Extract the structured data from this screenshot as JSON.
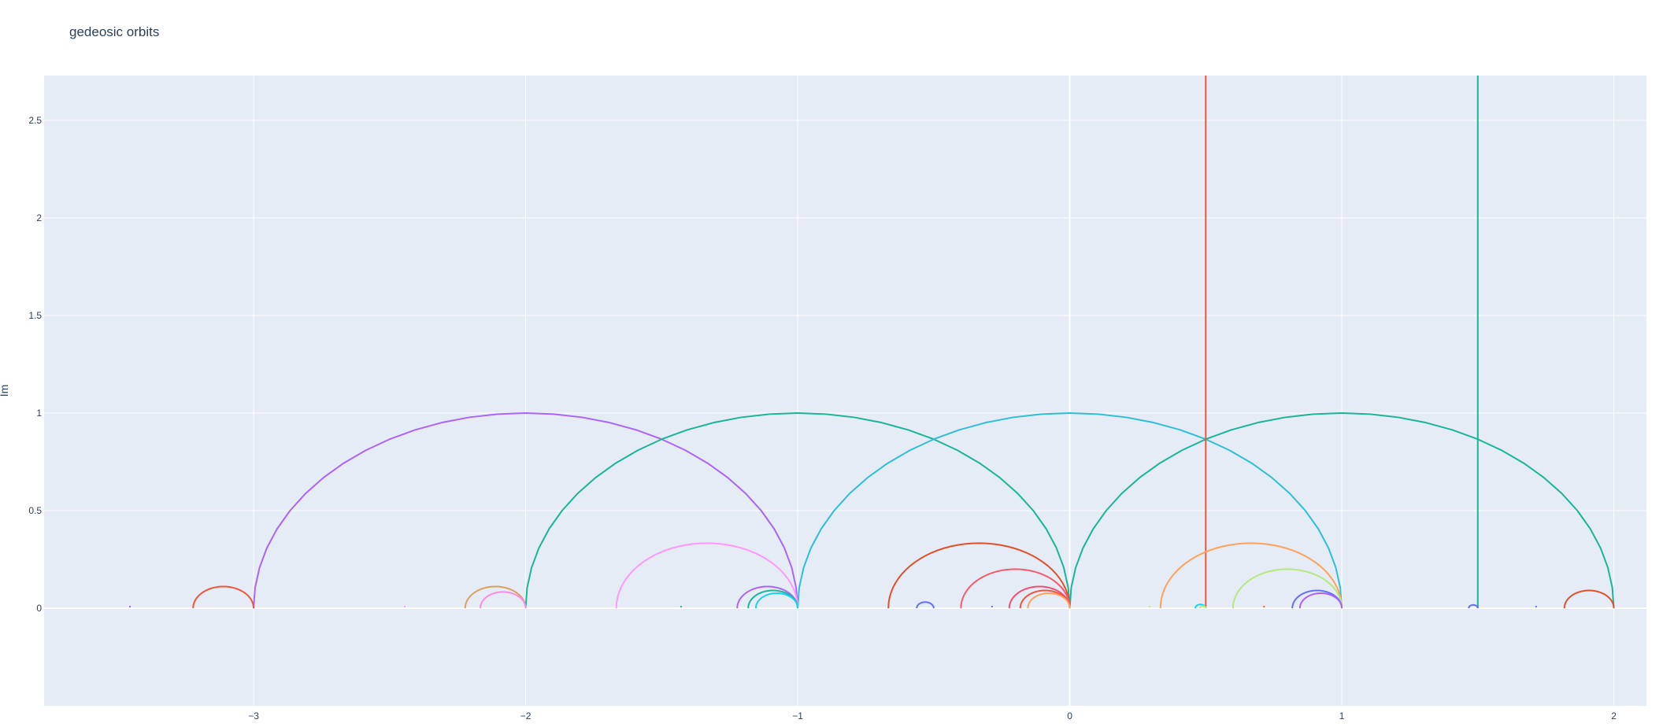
{
  "chart_data": {
    "type": "line",
    "title": "gedeosic orbits",
    "xlabel": "",
    "ylabel": "Im",
    "xlim": [
      -3.77,
      2.12
    ],
    "ylim": [
      -0.5,
      2.73
    ],
    "grid": true,
    "legend": "none",
    "background_color": "#e5ecf6",
    "x_ticks": [
      -3,
      -2,
      -1,
      0,
      1,
      2
    ],
    "x_tick_labels": [
      "−3",
      "−2",
      "−1",
      "0",
      "1",
      "2"
    ],
    "y_ticks": [
      0,
      0.5,
      1,
      1.5,
      2,
      2.5
    ],
    "y_tick_labels": [
      "0",
      "0.5",
      "1",
      "1.5",
      "2",
      "2.5"
    ],
    "series": [
      {
        "kind": "arc",
        "x_left": -3.0,
        "x_right": -1.0,
        "color": "#ab63fa"
      },
      {
        "kind": "arc",
        "x_left": -2.0,
        "x_right": 0.0,
        "color": "#19b596"
      },
      {
        "kind": "arc",
        "x_left": -1.0,
        "x_right": 1.0,
        "color": "#2ebfd6"
      },
      {
        "kind": "arc",
        "x_left": 0.0,
        "x_right": 2.0,
        "color": "#19b596"
      },
      {
        "kind": "vline",
        "x": 0.5,
        "color": "#ef553b"
      },
      {
        "kind": "vline",
        "x": 1.5,
        "color": "#19b596"
      },
      {
        "kind": "arc",
        "x_left": -3.2222,
        "x_right": -3.0,
        "color": "#ef553b"
      },
      {
        "kind": "arc",
        "x_left": -2.2222,
        "x_right": -2.0,
        "color": "#d9a060"
      },
      {
        "kind": "arc",
        "x_left": -2.1667,
        "x_right": -2.0,
        "color": "#ff8ae6"
      },
      {
        "kind": "arc",
        "x_left": -1.6667,
        "x_right": -1.0,
        "color": "#ff97ff"
      },
      {
        "kind": "arc",
        "x_left": -1.2222,
        "x_right": -1.0,
        "color": "#ab63fa"
      },
      {
        "kind": "arc",
        "x_left": -1.1818,
        "x_right": -1.0,
        "color": "#19b596"
      },
      {
        "kind": "arc",
        "x_left": -1.1538,
        "x_right": -1.0,
        "color": "#19d3f3"
      },
      {
        "kind": "arc",
        "x_left": -0.6667,
        "x_right": 0.0,
        "color": "#e0502a"
      },
      {
        "kind": "arc",
        "x_left": -0.4,
        "x_right": 0.0,
        "color": "#f25c6e"
      },
      {
        "kind": "arc",
        "x_left": -0.2222,
        "x_right": 0.0,
        "color": "#f0506e"
      },
      {
        "kind": "arc",
        "x_left": -0.1818,
        "x_right": 0.0,
        "color": "#ef553b"
      },
      {
        "kind": "arc",
        "x_left": -0.1538,
        "x_right": 0.0,
        "color": "#ffa15a"
      },
      {
        "kind": "arc",
        "x_left": -0.5625,
        "x_right": -0.5,
        "color": "#636efa"
      },
      {
        "kind": "arc",
        "x_left": 0.3333,
        "x_right": 1.0,
        "color": "#ffa15a"
      },
      {
        "kind": "arc",
        "x_left": 0.6,
        "x_right": 1.0,
        "color": "#b6e880"
      },
      {
        "kind": "arc",
        "x_left": 0.8182,
        "x_right": 1.0,
        "color": "#636efa"
      },
      {
        "kind": "arc",
        "x_left": 0.8462,
        "x_right": 1.0,
        "color": "#ab63fa"
      },
      {
        "kind": "arc",
        "x_left": 0.4615,
        "x_right": 0.5,
        "color": "#19d3f3"
      },
      {
        "kind": "arc",
        "x_left": 0.4783,
        "x_right": 0.5,
        "color": "#b6e880"
      },
      {
        "kind": "arc",
        "x_left": 1.4667,
        "x_right": 1.5,
        "color": "#636efa"
      },
      {
        "kind": "arc",
        "x_left": 1.8182,
        "x_right": 2.0,
        "color": "#e0502a"
      },
      {
        "kind": "dot",
        "x": -3.4545,
        "color": "#ab63fa"
      },
      {
        "kind": "dot",
        "x": -2.4444,
        "color": "#ff97ff"
      },
      {
        "kind": "dot",
        "x": -1.4286,
        "color": "#19b596"
      },
      {
        "kind": "dot",
        "x": -0.2857,
        "color": "#636efa"
      },
      {
        "kind": "dot",
        "x": 0.2941,
        "color": "#b6e880"
      },
      {
        "kind": "dot",
        "x": 0.7143,
        "color": "#ef553b"
      },
      {
        "kind": "dot",
        "x": 1.7143,
        "color": "#636efa"
      }
    ]
  }
}
